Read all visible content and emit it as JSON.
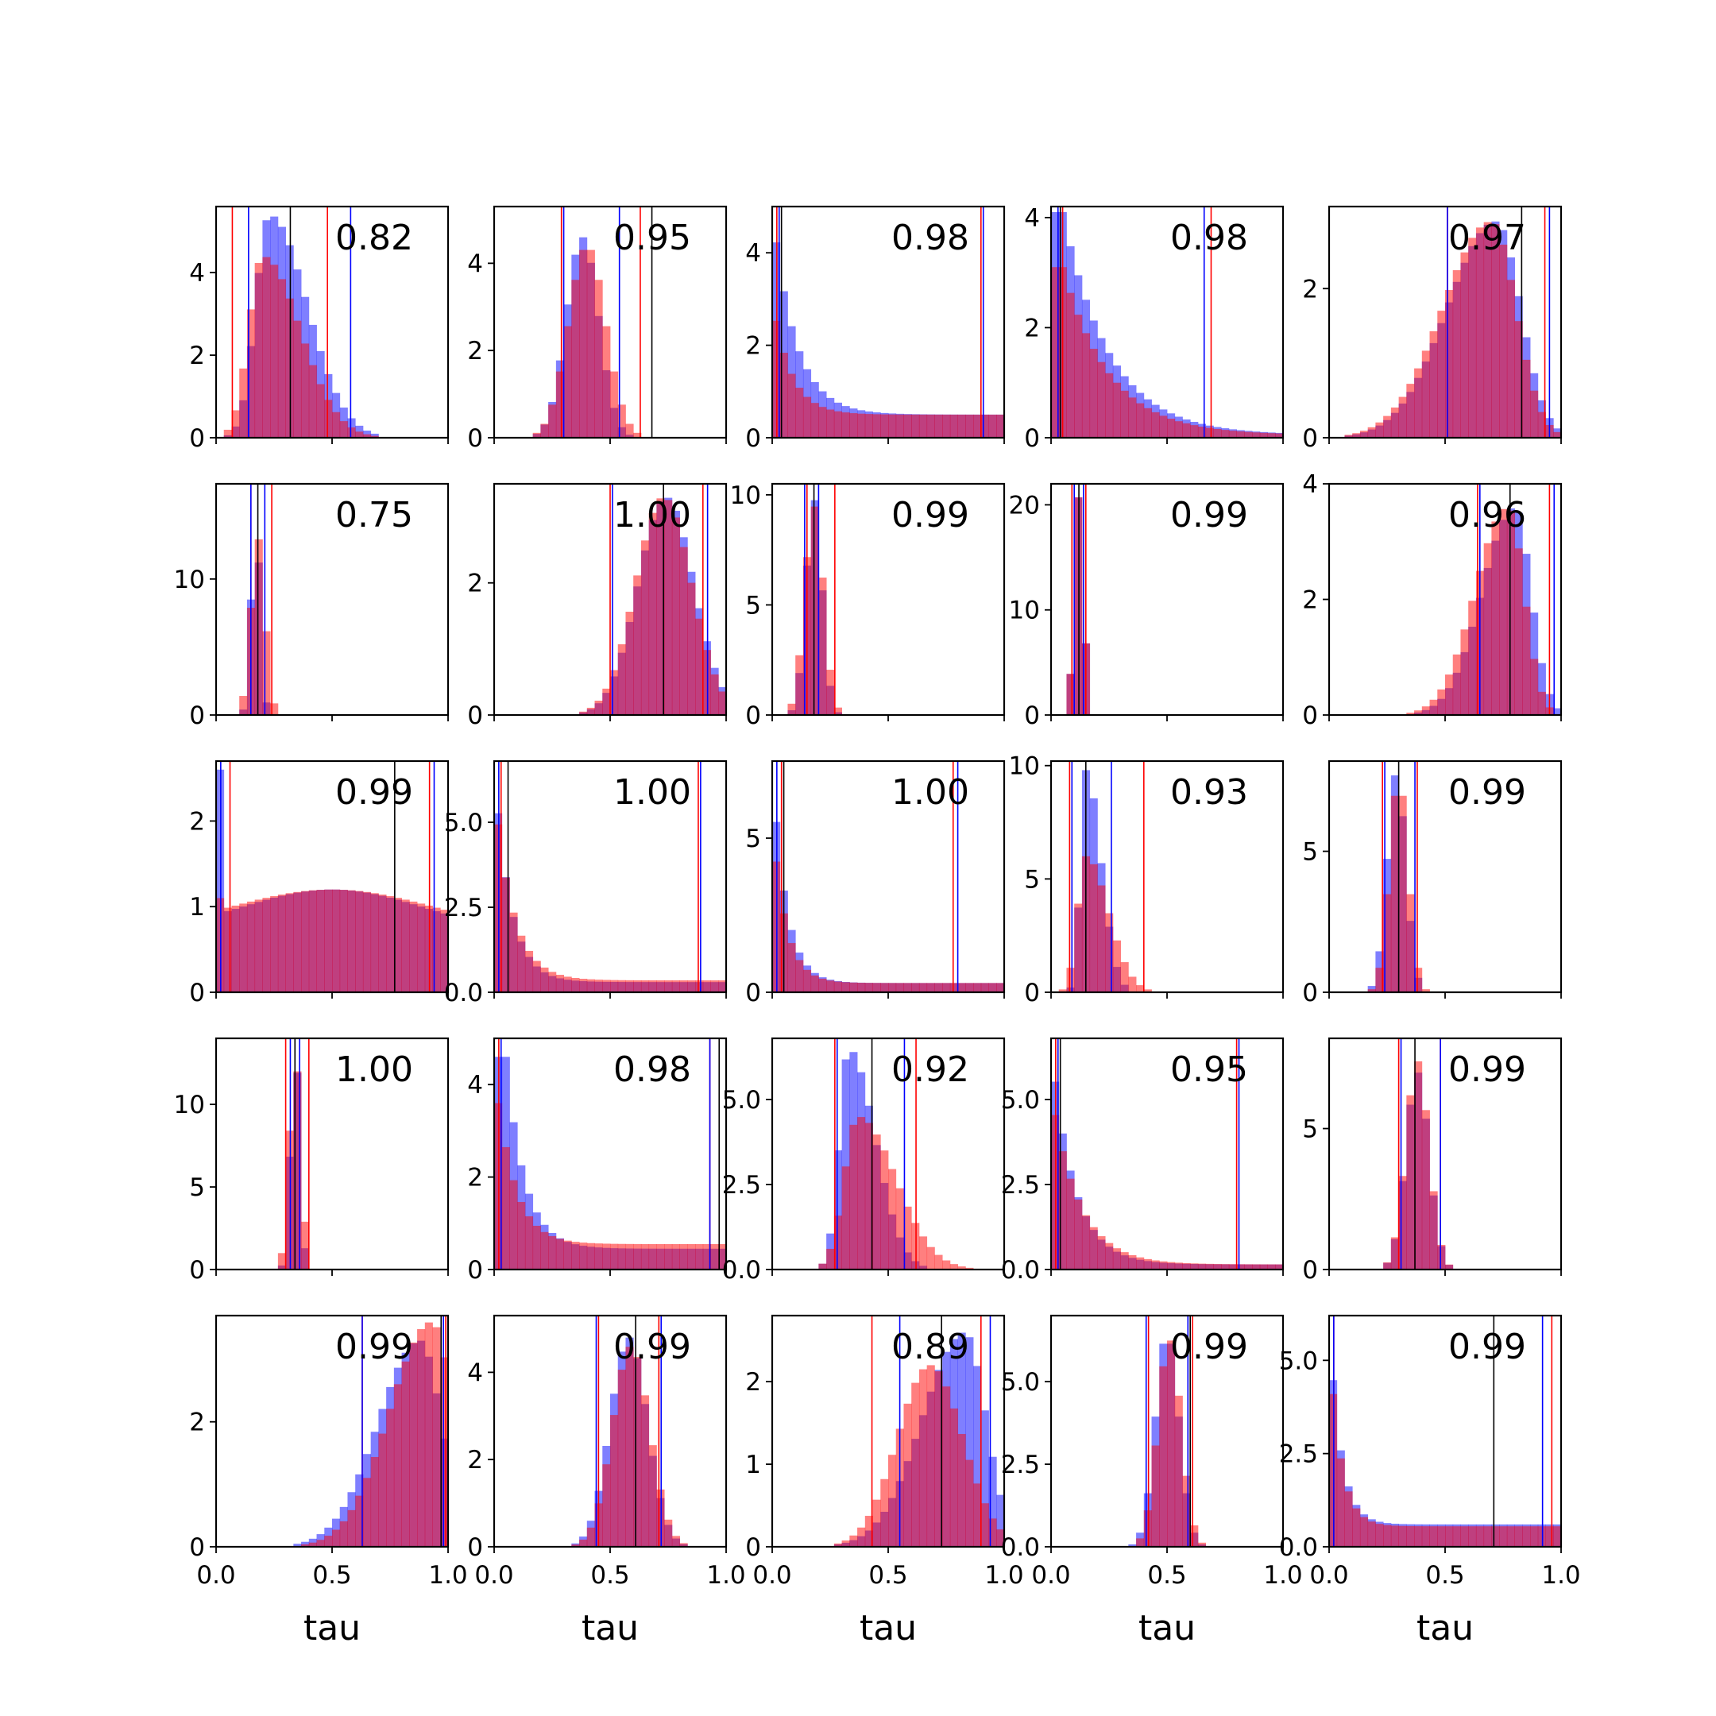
{
  "figure": {
    "xlabel": "tau",
    "xlim": [
      0,
      1
    ],
    "x_ticks": [
      0,
      0.5,
      1
    ],
    "x_tick_labels": [
      "0.0",
      "0.5",
      "1.0"
    ],
    "colors": {
      "blue": "#0000ff",
      "red": "#ff0000",
      "black": "#000000",
      "blue_fill": "#7f7fff",
      "red_fill": "#ff7f7f",
      "overlap": "#c03a78"
    },
    "bins": 30,
    "legend": "none",
    "grid": false
  },
  "chart_data": [
    {
      "type": "histogram",
      "annotation": "0.82",
      "ylim": [
        0,
        5.6
      ],
      "y_ticks": [
        0,
        2,
        4
      ],
      "y_tick_labels": [
        "0",
        "2",
        "4"
      ],
      "lines": {
        "red": [
          0.07,
          0.48
        ],
        "blue": [
          0.14,
          0.58
        ],
        "black": [
          0.32
        ]
      },
      "series": [
        {
          "color": "blue",
          "shape": "skewright",
          "peak": 0.23,
          "width": 0.1,
          "max": 5.4
        },
        {
          "color": "red",
          "shape": "skewright",
          "peak": 0.2,
          "width": 0.1,
          "max": 4.4
        }
      ]
    },
    {
      "type": "histogram",
      "annotation": "0.95",
      "ylim": [
        0,
        5.3
      ],
      "y_ticks": [
        0,
        2,
        4
      ],
      "y_tick_labels": [
        "0",
        "2",
        "4"
      ],
      "lines": {
        "red": [
          0.29,
          0.63
        ],
        "blue": [
          0.3,
          0.54
        ],
        "black": [
          0.68
        ]
      },
      "series": [
        {
          "color": "blue",
          "shape": "normal",
          "peak": 0.38,
          "width": 0.07,
          "max": 4.6
        },
        {
          "color": "red",
          "shape": "normal",
          "peak": 0.4,
          "width": 0.08,
          "max": 4.4
        }
      ]
    },
    {
      "type": "histogram",
      "annotation": "0.98",
      "ylim": [
        0,
        5.0
      ],
      "y_ticks": [
        0,
        2,
        4
      ],
      "y_tick_labels": [
        "0",
        "2",
        "4"
      ],
      "lines": {
        "red": [
          0.02,
          0.9
        ],
        "blue": [
          0.03,
          0.91
        ],
        "black": [
          0.04
        ]
      },
      "series": [
        {
          "color": "blue",
          "shape": "decay",
          "peak": 0,
          "width": 0.1,
          "max": 4.9,
          "floor": 0.5
        },
        {
          "color": "red",
          "shape": "decay",
          "peak": 0,
          "width": 0.08,
          "max": 3.0,
          "floor": 0.5
        }
      ]
    },
    {
      "type": "histogram",
      "annotation": "0.98",
      "ylim": [
        0,
        4.2
      ],
      "y_ticks": [
        0,
        2,
        4
      ],
      "y_tick_labels": [
        "0",
        "2",
        "4"
      ],
      "lines": {
        "red": [
          0.05,
          0.69
        ],
        "blue": [
          0.03,
          0.66
        ],
        "black": [
          0.04
        ]
      },
      "series": [
        {
          "color": "blue",
          "shape": "decay",
          "peak": 0.05,
          "width": 0.2,
          "max": 4.1,
          "floor": 0.05
        },
        {
          "color": "red",
          "shape": "decay",
          "peak": 0.05,
          "width": 0.2,
          "max": 3.1,
          "floor": 0.05
        }
      ]
    },
    {
      "type": "histogram",
      "annotation": "0.97",
      "ylim": [
        0,
        3.1
      ],
      "y_ticks": [
        0,
        2
      ],
      "y_tick_labels": [
        "0",
        "2"
      ],
      "lines": {
        "red": [
          0.51,
          0.93
        ],
        "blue": [
          0.51,
          0.95
        ],
        "black": [
          0.83
        ]
      },
      "series": [
        {
          "color": "blue",
          "shape": "skewleft",
          "peak": 0.72,
          "width": 0.15,
          "max": 2.9
        },
        {
          "color": "red",
          "shape": "skewleft",
          "peak": 0.7,
          "width": 0.15,
          "max": 2.9
        }
      ]
    },
    {
      "type": "histogram",
      "annotation": "0.75",
      "ylim": [
        0,
        17
      ],
      "y_ticks": [
        0,
        10
      ],
      "y_tick_labels": [
        "0",
        "10"
      ],
      "lines": {
        "red": [
          0.15,
          0.24
        ],
        "blue": [
          0.15,
          0.21
        ],
        "black": [
          0.18
        ]
      },
      "series": [
        {
          "color": "blue",
          "shape": "normal",
          "peak": 0.17,
          "width": 0.02,
          "max": 14
        },
        {
          "color": "red",
          "shape": "normal",
          "peak": 0.18,
          "width": 0.03,
          "max": 13
        }
      ]
    },
    {
      "type": "histogram",
      "annotation": "1.00",
      "ylim": [
        0,
        3.5
      ],
      "y_ticks": [
        0,
        2
      ],
      "y_tick_labels": [
        "0",
        "2"
      ],
      "lines": {
        "red": [
          0.5,
          0.9
        ],
        "blue": [
          0.51,
          0.92
        ],
        "black": [
          0.73
        ]
      },
      "series": [
        {
          "color": "blue",
          "shape": "normal",
          "peak": 0.74,
          "width": 0.12,
          "max": 3.3
        },
        {
          "color": "red",
          "shape": "normal",
          "peak": 0.73,
          "width": 0.12,
          "max": 3.3
        }
      ]
    },
    {
      "type": "histogram",
      "annotation": "0.99",
      "ylim": [
        0,
        10.5
      ],
      "y_ticks": [
        0,
        5,
        10
      ],
      "y_tick_labels": [
        "0",
        "5",
        "10"
      ],
      "lines": {
        "red": [
          0.15,
          0.27
        ],
        "blue": [
          0.14,
          0.2
        ],
        "black": [
          0.18
        ]
      },
      "series": [
        {
          "color": "blue",
          "shape": "normal",
          "peak": 0.18,
          "width": 0.035,
          "max": 9.8
        },
        {
          "color": "red",
          "shape": "normal",
          "peak": 0.18,
          "width": 0.04,
          "max": 9.5
        }
      ]
    },
    {
      "type": "histogram",
      "annotation": "0.99",
      "ylim": [
        0,
        22
      ],
      "y_ticks": [
        0,
        10,
        20
      ],
      "y_tick_labels": [
        "0",
        "10",
        "20"
      ],
      "lines": {
        "red": [
          0.09,
          0.15
        ],
        "blue": [
          0.1,
          0.14
        ],
        "black": [
          0.12
        ]
      },
      "series": [
        {
          "color": "blue",
          "shape": "normal",
          "peak": 0.12,
          "width": 0.02,
          "max": 21
        },
        {
          "color": "red",
          "shape": "normal",
          "peak": 0.12,
          "width": 0.02,
          "max": 21
        }
      ]
    },
    {
      "type": "histogram",
      "annotation": "0.96",
      "ylim": [
        0,
        4.0
      ],
      "y_ticks": [
        0,
        2,
        4
      ],
      "y_tick_labels": [
        "0",
        "2",
        "4"
      ],
      "lines": {
        "red": [
          0.64,
          0.95
        ],
        "blue": [
          0.65,
          0.97
        ],
        "black": [
          0.78
        ]
      },
      "series": [
        {
          "color": "blue",
          "shape": "skewleft",
          "peak": 0.8,
          "width": 0.1,
          "max": 3.6
        },
        {
          "color": "red",
          "shape": "skewleft",
          "peak": 0.77,
          "width": 0.1,
          "max": 3.6
        }
      ]
    },
    {
      "type": "histogram",
      "annotation": "0.99",
      "ylim": [
        0,
        2.7
      ],
      "y_ticks": [
        0,
        1,
        2
      ],
      "y_tick_labels": [
        "0",
        "1",
        "2"
      ],
      "lines": {
        "red": [
          0.06,
          0.92
        ],
        "blue": [
          0.02,
          0.94
        ],
        "black": [
          0.77
        ]
      },
      "series": [
        {
          "color": "blue",
          "shape": "broad",
          "peak": 0.5,
          "width": 0.4,
          "max": 1.2,
          "spike": 2.6
        },
        {
          "color": "red",
          "shape": "broad",
          "peak": 0.5,
          "width": 0.45,
          "max": 1.2,
          "spike": 1.1
        }
      ]
    },
    {
      "type": "histogram",
      "annotation": "1.00",
      "ylim": [
        0,
        6.8
      ],
      "y_ticks": [
        0,
        2.5,
        5
      ],
      "y_tick_labels": [
        "0.0",
        "2.5",
        "5.0"
      ],
      "lines": {
        "red": [
          0.03,
          0.88
        ],
        "blue": [
          0.02,
          0.89
        ],
        "black": [
          0.06
        ]
      },
      "series": [
        {
          "color": "blue",
          "shape": "decay",
          "peak": 0,
          "width": 0.07,
          "max": 6.6,
          "floor": 0.3
        },
        {
          "color": "red",
          "shape": "decay",
          "peak": 0,
          "width": 0.08,
          "max": 6.0,
          "floor": 0.35
        }
      ]
    },
    {
      "type": "histogram",
      "annotation": "1.00",
      "ylim": [
        0,
        7.5
      ],
      "y_ticks": [
        0,
        5
      ],
      "y_tick_labels": [
        "0",
        "5"
      ],
      "lines": {
        "red": [
          0.04,
          0.78
        ],
        "blue": [
          0.02,
          0.8
        ],
        "black": [
          0.05
        ]
      },
      "series": [
        {
          "color": "blue",
          "shape": "decay",
          "peak": 0,
          "width": 0.06,
          "max": 7.2,
          "floor": 0.3
        },
        {
          "color": "red",
          "shape": "decay",
          "peak": 0,
          "width": 0.06,
          "max": 5.5,
          "floor": 0.3
        }
      ]
    },
    {
      "type": "histogram",
      "annotation": "0.93",
      "ylim": [
        0,
        10.2
      ],
      "y_ticks": [
        0,
        5,
        10
      ],
      "y_tick_labels": [
        "0",
        "5",
        "10"
      ],
      "lines": {
        "red": [
          0.08,
          0.4
        ],
        "blue": [
          0.09,
          0.26
        ],
        "black": [
          0.15
        ]
      },
      "series": [
        {
          "color": "blue",
          "shape": "skewright",
          "peak": 0.15,
          "width": 0.04,
          "max": 9.8
        },
        {
          "color": "red",
          "shape": "skewright",
          "peak": 0.15,
          "width": 0.06,
          "max": 6.0
        }
      ]
    },
    {
      "type": "histogram",
      "annotation": "0.99",
      "ylim": [
        0,
        8.2
      ],
      "y_ticks": [
        0,
        5
      ],
      "y_tick_labels": [
        "0",
        "5"
      ],
      "lines": {
        "red": [
          0.23,
          0.38
        ],
        "blue": [
          0.24,
          0.37
        ],
        "black": [
          0.3
        ]
      },
      "series": [
        {
          "color": "blue",
          "shape": "normal",
          "peak": 0.29,
          "width": 0.04,
          "max": 7.8
        },
        {
          "color": "red",
          "shape": "normal",
          "peak": 0.3,
          "width": 0.04,
          "max": 7.6
        }
      ]
    },
    {
      "type": "histogram",
      "annotation": "1.00",
      "ylim": [
        0,
        14
      ],
      "y_ticks": [
        0,
        5,
        10
      ],
      "y_tick_labels": [
        "0",
        "5",
        "10"
      ],
      "lines": {
        "red": [
          0.3,
          0.4
        ],
        "blue": [
          0.32,
          0.36
        ],
        "black": [
          0.34
        ]
      },
      "series": [
        {
          "color": "blue",
          "shape": "normal",
          "peak": 0.34,
          "width": 0.02,
          "max": 13.5
        },
        {
          "color": "red",
          "shape": "normal",
          "peak": 0.34,
          "width": 0.025,
          "max": 13
        }
      ]
    },
    {
      "type": "histogram",
      "annotation": "0.98",
      "ylim": [
        0,
        5.0
      ],
      "y_ticks": [
        0,
        2,
        4
      ],
      "y_tick_labels": [
        "0",
        "2",
        "4"
      ],
      "lines": {
        "red": [
          0.02,
          0.93
        ],
        "blue": [
          0.03,
          0.93
        ],
        "black": [
          0.97
        ]
      },
      "series": [
        {
          "color": "blue",
          "shape": "decay",
          "peak": 0.05,
          "width": 0.08,
          "max": 4.6,
          "floor": 0.45
        },
        {
          "color": "red",
          "shape": "decay",
          "peak": 0.02,
          "width": 0.08,
          "max": 3.6,
          "floor": 0.55
        }
      ]
    },
    {
      "type": "histogram",
      "annotation": "0.92",
      "ylim": [
        0,
        6.8
      ],
      "y_ticks": [
        0,
        2.5,
        5
      ],
      "y_tick_labels": [
        "0.0",
        "2.5",
        "5.0"
      ],
      "lines": {
        "red": [
          0.27,
          0.62
        ],
        "blue": [
          0.28,
          0.57
        ],
        "black": [
          0.43
        ]
      },
      "series": [
        {
          "color": "blue",
          "shape": "skewright",
          "peak": 0.33,
          "width": 0.07,
          "max": 6.5
        },
        {
          "color": "red",
          "shape": "skewright",
          "peak": 0.37,
          "width": 0.1,
          "max": 4.5
        }
      ]
    },
    {
      "type": "histogram",
      "annotation": "0.95",
      "ylim": [
        0,
        6.8
      ],
      "y_ticks": [
        0,
        2.5,
        5
      ],
      "y_tick_labels": [
        "0.0",
        "2.5",
        "5.0"
      ],
      "lines": {
        "red": [
          0.02,
          0.8
        ],
        "blue": [
          0.03,
          0.81
        ],
        "black": [
          0.04
        ]
      },
      "series": [
        {
          "color": "blue",
          "shape": "decay",
          "peak": 0,
          "width": 0.1,
          "max": 6.5,
          "floor": 0.15
        },
        {
          "color": "red",
          "shape": "decay",
          "peak": 0,
          "width": 0.12,
          "max": 5.2,
          "floor": 0.15
        }
      ]
    },
    {
      "type": "histogram",
      "annotation": "0.99",
      "ylim": [
        0,
        8.2
      ],
      "y_ticks": [
        0,
        5
      ],
      "y_tick_labels": [
        "0",
        "5"
      ],
      "lines": {
        "red": [
          0.3,
          0.48
        ],
        "blue": [
          0.31,
          0.48
        ],
        "black": [
          0.37
        ]
      },
      "series": [
        {
          "color": "blue",
          "shape": "normal",
          "peak": 0.38,
          "width": 0.05,
          "max": 7.0
        },
        {
          "color": "red",
          "shape": "normal",
          "peak": 0.38,
          "width": 0.05,
          "max": 7.4
        }
      ]
    },
    {
      "type": "histogram",
      "annotation": "0.99",
      "ylim": [
        0,
        3.7
      ],
      "y_ticks": [
        0,
        2
      ],
      "y_tick_labels": [
        "0",
        "2"
      ],
      "lines": {
        "red": [
          0.63,
          0.99
        ],
        "blue": [
          0.63,
          0.98
        ],
        "black": [
          0.97
        ]
      },
      "series": [
        {
          "color": "blue",
          "shape": "skewleft",
          "peak": 0.88,
          "width": 0.13,
          "max": 3.3
        },
        {
          "color": "red",
          "shape": "skewleft",
          "peak": 0.93,
          "width": 0.13,
          "max": 3.6
        }
      ]
    },
    {
      "type": "histogram",
      "annotation": "0.99",
      "ylim": [
        0,
        5.3
      ],
      "y_ticks": [
        0,
        2,
        4
      ],
      "y_tick_labels": [
        "0",
        "2",
        "4"
      ],
      "lines": {
        "red": [
          0.45,
          0.71
        ],
        "blue": [
          0.44,
          0.72
        ],
        "black": [
          0.61
        ]
      },
      "series": [
        {
          "color": "blue",
          "shape": "normal",
          "peak": 0.58,
          "width": 0.08,
          "max": 4.8
        },
        {
          "color": "red",
          "shape": "normal",
          "peak": 0.59,
          "width": 0.08,
          "max": 4.6
        }
      ]
    },
    {
      "type": "histogram",
      "annotation": "0.89",
      "ylim": [
        0,
        2.8
      ],
      "y_ticks": [
        0,
        1,
        2
      ],
      "y_tick_labels": [
        "0",
        "1",
        "2"
      ],
      "lines": {
        "red": [
          0.43,
          0.9
        ],
        "blue": [
          0.55,
          0.94
        ],
        "black": [
          0.73
        ]
      },
      "series": [
        {
          "color": "blue",
          "shape": "skewleft",
          "peak": 0.83,
          "width": 0.13,
          "max": 2.6
        },
        {
          "color": "red",
          "shape": "normal",
          "peak": 0.68,
          "width": 0.14,
          "max": 2.2
        }
      ]
    },
    {
      "type": "histogram",
      "annotation": "0.99",
      "ylim": [
        0,
        7.0
      ],
      "y_ticks": [
        0,
        2.5,
        5
      ],
      "y_tick_labels": [
        "0.0",
        "2.5",
        "5.0"
      ],
      "lines": {
        "red": [
          0.42,
          0.61
        ],
        "blue": [
          0.41,
          0.59
        ],
        "black": [
          0.6
        ]
      },
      "series": [
        {
          "color": "blue",
          "shape": "normal",
          "peak": 0.5,
          "width": 0.05,
          "max": 6.5
        },
        {
          "color": "red",
          "shape": "normal",
          "peak": 0.51,
          "width": 0.05,
          "max": 6.3
        }
      ]
    },
    {
      "type": "histogram",
      "annotation": "0.99",
      "ylim": [
        0,
        6.2
      ],
      "y_ticks": [
        0,
        2.5,
        5
      ],
      "y_tick_labels": [
        "0.0",
        "2.5",
        "5.0"
      ],
      "lines": {
        "red": [
          0.02,
          0.96
        ],
        "blue": [
          0.02,
          0.92
        ],
        "black": [
          0.71
        ]
      },
      "series": [
        {
          "color": "blue",
          "shape": "decay",
          "peak": 0,
          "width": 0.05,
          "max": 6.0,
          "floor": 0.6
        },
        {
          "color": "red",
          "shape": "decay",
          "peak": 0,
          "width": 0.05,
          "max": 5.5,
          "floor": 0.55
        }
      ]
    }
  ]
}
